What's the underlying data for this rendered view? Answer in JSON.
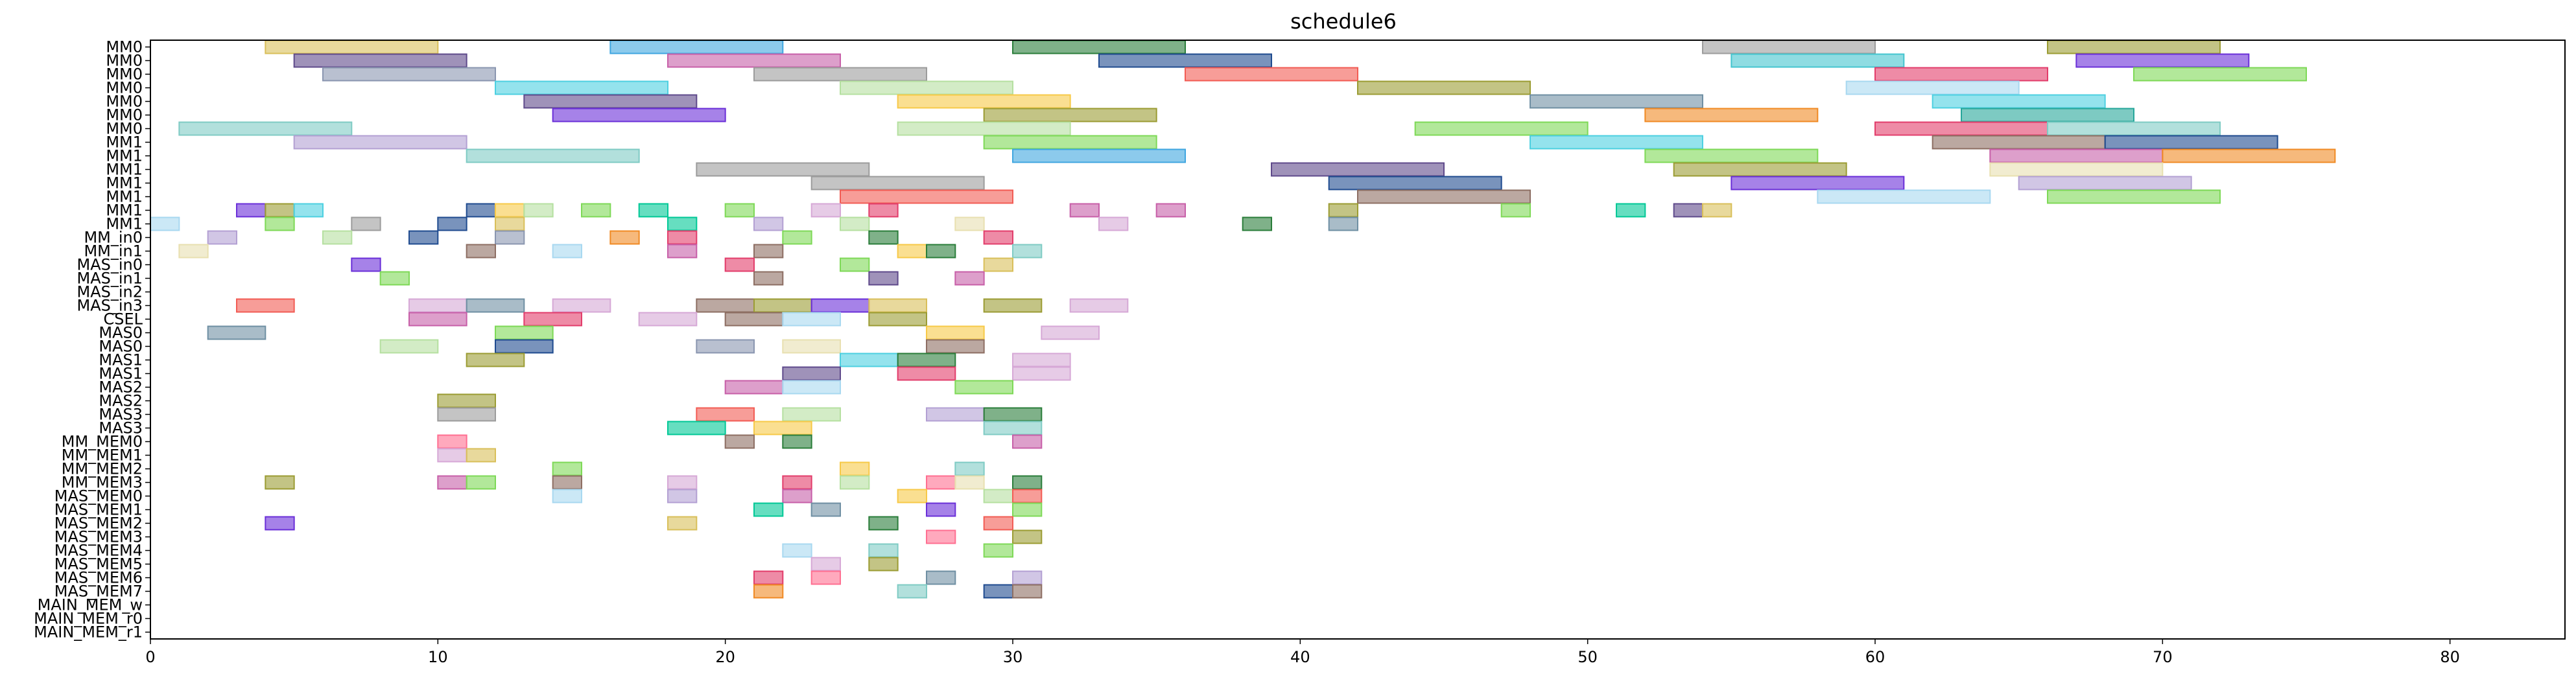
{
  "chart_data": {
    "type": "gantt",
    "title": "schedule6",
    "xlabel": "",
    "ylabel": "",
    "xlim": [
      0,
      84
    ],
    "x_ticks": [
      0,
      10,
      20,
      30,
      40,
      50,
      60,
      70,
      80
    ],
    "grid": false,
    "rows": [
      "MM0",
      "MM0",
      "MM0",
      "MM0",
      "MM0",
      "MM0",
      "MM0",
      "MM1",
      "MM1",
      "MM1",
      "MM1",
      "MM1",
      "MM1",
      "MM1",
      "MM_in0",
      "MM_in1",
      "MAS_in0",
      "MAS_in1",
      "MAS_in2",
      "MAS_in3",
      "CSEL",
      "MAS0",
      "MAS0",
      "MAS1",
      "MAS1",
      "MAS2",
      "MAS2",
      "MAS3",
      "MAS3",
      "MM_MEM0",
      "MM_MEM1",
      "MM_MEM2",
      "MM_MEM3",
      "MAS_MEM0",
      "MAS_MEM1",
      "MAS_MEM2",
      "MAS_MEM3",
      "MAS_MEM4",
      "MAS_MEM5",
      "MAS_MEM6",
      "MAS_MEM7",
      "MAIN_MEM_w",
      "MAIN_MEM_r0",
      "MAIN_MEM_r1"
    ],
    "palette": [
      "#d9bf5a",
      "#3fa6e0",
      "#2a7d3a",
      "#9c9c9c",
      "#5f4a8b",
      "#c75fa8",
      "#8a96b0",
      "#f25c54",
      "#44c5cf",
      "#d6a8d6",
      "#7ed957",
      "#f7c948",
      "#6f8fa3",
      "#6a2fd8",
      "#f08a24",
      "#9b9c33",
      "#7fcbc4",
      "#e23d6b",
      "#1f4b8f",
      "#b5e0a0",
      "#a8d8f0",
      "#b3a0d3",
      "#e8e0b0",
      "#4dd0e1",
      "#ff6f91",
      "#00c896",
      "#8d6e63",
      "#c0ca33",
      "#7e57c2",
      "#26a69a"
    ],
    "bars": [
      {
        "row": 0,
        "start": 4,
        "end": 10,
        "c": 0
      },
      {
        "row": 0,
        "start": 16,
        "end": 22,
        "c": 1
      },
      {
        "row": 0,
        "start": 30,
        "end": 36,
        "c": 2
      },
      {
        "row": 0,
        "start": 54,
        "end": 60,
        "c": 3
      },
      {
        "row": 0,
        "start": 66,
        "end": 72,
        "c": 15
      },
      {
        "row": 1,
        "start": 5,
        "end": 11,
        "c": 4
      },
      {
        "row": 1,
        "start": 18,
        "end": 24,
        "c": 5
      },
      {
        "row": 1,
        "start": 33,
        "end": 39,
        "c": 18
      },
      {
        "row": 1,
        "start": 55,
        "end": 61,
        "c": 8
      },
      {
        "row": 1,
        "start": 67,
        "end": 73,
        "c": 13
      },
      {
        "row": 2,
        "start": 6,
        "end": 12,
        "c": 6
      },
      {
        "row": 2,
        "start": 21,
        "end": 27,
        "c": 3
      },
      {
        "row": 2,
        "start": 36,
        "end": 42,
        "c": 7
      },
      {
        "row": 2,
        "start": 60,
        "end": 66,
        "c": 17
      },
      {
        "row": 2,
        "start": 69,
        "end": 75,
        "c": 10
      },
      {
        "row": 3,
        "start": 12,
        "end": 18,
        "c": 23
      },
      {
        "row": 3,
        "start": 24,
        "end": 30,
        "c": 19
      },
      {
        "row": 3,
        "start": 42,
        "end": 48,
        "c": 15
      },
      {
        "row": 3,
        "start": 59,
        "end": 65,
        "c": 20
      },
      {
        "row": 4,
        "start": 13,
        "end": 19,
        "c": 4
      },
      {
        "row": 4,
        "start": 26,
        "end": 32,
        "c": 11
      },
      {
        "row": 4,
        "start": 48,
        "end": 54,
        "c": 12
      },
      {
        "row": 4,
        "start": 62,
        "end": 68,
        "c": 23
      },
      {
        "row": 5,
        "start": 14,
        "end": 20,
        "c": 13
      },
      {
        "row": 5,
        "start": 29,
        "end": 35,
        "c": 15
      },
      {
        "row": 5,
        "start": 52,
        "end": 58,
        "c": 14
      },
      {
        "row": 5,
        "start": 63,
        "end": 69,
        "c": 29
      },
      {
        "row": 6,
        "start": 1,
        "end": 7,
        "c": 16
      },
      {
        "row": 6,
        "start": 26,
        "end": 32,
        "c": 19
      },
      {
        "row": 6,
        "start": 44,
        "end": 50,
        "c": 10
      },
      {
        "row": 6,
        "start": 60,
        "end": 66,
        "c": 17
      },
      {
        "row": 6,
        "start": 66,
        "end": 72,
        "c": 16
      },
      {
        "row": 7,
        "start": 5,
        "end": 11,
        "c": 21
      },
      {
        "row": 7,
        "start": 29,
        "end": 35,
        "c": 10
      },
      {
        "row": 7,
        "start": 48,
        "end": 54,
        "c": 23
      },
      {
        "row": 7,
        "start": 62,
        "end": 68,
        "c": 26
      },
      {
        "row": 7,
        "start": 68,
        "end": 74,
        "c": 18
      },
      {
        "row": 8,
        "start": 11,
        "end": 17,
        "c": 16
      },
      {
        "row": 8,
        "start": 30,
        "end": 36,
        "c": 1
      },
      {
        "row": 8,
        "start": 52,
        "end": 58,
        "c": 10
      },
      {
        "row": 8,
        "start": 64,
        "end": 70,
        "c": 5
      },
      {
        "row": 8,
        "start": 70,
        "end": 76,
        "c": 14
      },
      {
        "row": 9,
        "start": 19,
        "end": 25,
        "c": 3
      },
      {
        "row": 9,
        "start": 39,
        "end": 45,
        "c": 4
      },
      {
        "row": 9,
        "start": 53,
        "end": 59,
        "c": 15
      },
      {
        "row": 9,
        "start": 64,
        "end": 70,
        "c": 22
      },
      {
        "row": 10,
        "start": 23,
        "end": 29,
        "c": 3
      },
      {
        "row": 10,
        "start": 41,
        "end": 47,
        "c": 18
      },
      {
        "row": 10,
        "start": 55,
        "end": 61,
        "c": 13
      },
      {
        "row": 10,
        "start": 65,
        "end": 71,
        "c": 21
      },
      {
        "row": 11,
        "start": 24,
        "end": 30,
        "c": 7
      },
      {
        "row": 11,
        "start": 42,
        "end": 48,
        "c": 26
      },
      {
        "row": 11,
        "start": 58,
        "end": 64,
        "c": 20
      },
      {
        "row": 11,
        "start": 66,
        "end": 72,
        "c": 10
      },
      {
        "row": 12,
        "start": 3,
        "end": 4,
        "c": 13
      },
      {
        "row": 12,
        "start": 4,
        "end": 5,
        "c": 15
      },
      {
        "row": 12,
        "start": 5,
        "end": 6,
        "c": 23
      },
      {
        "row": 12,
        "start": 11,
        "end": 12,
        "c": 18
      },
      {
        "row": 12,
        "start": 12,
        "end": 13,
        "c": 11
      },
      {
        "row": 12,
        "start": 13,
        "end": 14,
        "c": 19
      },
      {
        "row": 12,
        "start": 15,
        "end": 16,
        "c": 10
      },
      {
        "row": 12,
        "start": 17,
        "end": 18,
        "c": 25
      },
      {
        "row": 12,
        "start": 20,
        "end": 21,
        "c": 10
      },
      {
        "row": 12,
        "start": 23,
        "end": 24,
        "c": 9
      },
      {
        "row": 12,
        "start": 25,
        "end": 26,
        "c": 17
      },
      {
        "row": 12,
        "start": 32,
        "end": 33,
        "c": 5
      },
      {
        "row": 12,
        "start": 35,
        "end": 36,
        "c": 5
      },
      {
        "row": 12,
        "start": 41,
        "end": 42,
        "c": 15
      },
      {
        "row": 12,
        "start": 47,
        "end": 48,
        "c": 10
      },
      {
        "row": 12,
        "start": 51,
        "end": 52,
        "c": 25
      },
      {
        "row": 12,
        "start": 53,
        "end": 54,
        "c": 4
      },
      {
        "row": 12,
        "start": 54,
        "end": 55,
        "c": 0
      },
      {
        "row": 13,
        "start": 0,
        "end": 1,
        "c": 20
      },
      {
        "row": 13,
        "start": 4,
        "end": 5,
        "c": 10
      },
      {
        "row": 13,
        "start": 7,
        "end": 8,
        "c": 3
      },
      {
        "row": 13,
        "start": 10,
        "end": 11,
        "c": 18
      },
      {
        "row": 13,
        "start": 12,
        "end": 13,
        "c": 0
      },
      {
        "row": 13,
        "start": 18,
        "end": 19,
        "c": 25
      },
      {
        "row": 13,
        "start": 21,
        "end": 22,
        "c": 21
      },
      {
        "row": 13,
        "start": 24,
        "end": 25,
        "c": 19
      },
      {
        "row": 13,
        "start": 28,
        "end": 29,
        "c": 22
      },
      {
        "row": 13,
        "start": 33,
        "end": 34,
        "c": 9
      },
      {
        "row": 13,
        "start": 38,
        "end": 39,
        "c": 2
      },
      {
        "row": 13,
        "start": 41,
        "end": 42,
        "c": 12
      },
      {
        "row": 14,
        "start": 2,
        "end": 3,
        "c": 21
      },
      {
        "row": 14,
        "start": 6,
        "end": 7,
        "c": 19
      },
      {
        "row": 14,
        "start": 9,
        "end": 10,
        "c": 18
      },
      {
        "row": 14,
        "start": 12,
        "end": 13,
        "c": 6
      },
      {
        "row": 14,
        "start": 16,
        "end": 17,
        "c": 14
      },
      {
        "row": 14,
        "start": 18,
        "end": 19,
        "c": 17
      },
      {
        "row": 14,
        "start": 22,
        "end": 23,
        "c": 10
      },
      {
        "row": 14,
        "start": 25,
        "end": 26,
        "c": 2
      },
      {
        "row": 14,
        "start": 29,
        "end": 30,
        "c": 17
      },
      {
        "row": 15,
        "start": 1,
        "end": 2,
        "c": 22
      },
      {
        "row": 15,
        "start": 11,
        "end": 12,
        "c": 26
      },
      {
        "row": 15,
        "start": 14,
        "end": 15,
        "c": 20
      },
      {
        "row": 15,
        "start": 18,
        "end": 19,
        "c": 5
      },
      {
        "row": 15,
        "start": 21,
        "end": 22,
        "c": 26
      },
      {
        "row": 15,
        "start": 26,
        "end": 27,
        "c": 11
      },
      {
        "row": 15,
        "start": 27,
        "end": 28,
        "c": 2
      },
      {
        "row": 15,
        "start": 30,
        "end": 31,
        "c": 16
      },
      {
        "row": 16,
        "start": 7,
        "end": 8,
        "c": 13
      },
      {
        "row": 16,
        "start": 20,
        "end": 21,
        "c": 17
      },
      {
        "row": 16,
        "start": 24,
        "end": 25,
        "c": 10
      },
      {
        "row": 16,
        "start": 29,
        "end": 30,
        "c": 0
      },
      {
        "row": 17,
        "start": 8,
        "end": 9,
        "c": 10
      },
      {
        "row": 17,
        "start": 21,
        "end": 22,
        "c": 26
      },
      {
        "row": 17,
        "start": 25,
        "end": 26,
        "c": 4
      },
      {
        "row": 17,
        "start": 28,
        "end": 29,
        "c": 5
      },
      {
        "row": 19,
        "start": 3,
        "end": 5,
        "c": 7
      },
      {
        "row": 19,
        "start": 9,
        "end": 11,
        "c": 9
      },
      {
        "row": 19,
        "start": 11,
        "end": 13,
        "c": 12
      },
      {
        "row": 19,
        "start": 14,
        "end": 16,
        "c": 9
      },
      {
        "row": 19,
        "start": 19,
        "end": 21,
        "c": 26
      },
      {
        "row": 19,
        "start": 21,
        "end": 23,
        "c": 15
      },
      {
        "row": 19,
        "start": 23,
        "end": 25,
        "c": 13
      },
      {
        "row": 19,
        "start": 25,
        "end": 27,
        "c": 0
      },
      {
        "row": 19,
        "start": 29,
        "end": 31,
        "c": 15
      },
      {
        "row": 19,
        "start": 32,
        "end": 34,
        "c": 9
      },
      {
        "row": 20,
        "start": 9,
        "end": 11,
        "c": 5
      },
      {
        "row": 20,
        "start": 13,
        "end": 15,
        "c": 17
      },
      {
        "row": 20,
        "start": 17,
        "end": 19,
        "c": 9
      },
      {
        "row": 20,
        "start": 20,
        "end": 22,
        "c": 26
      },
      {
        "row": 20,
        "start": 22,
        "end": 24,
        "c": 20
      },
      {
        "row": 20,
        "start": 25,
        "end": 27,
        "c": 15
      },
      {
        "row": 21,
        "start": 2,
        "end": 4,
        "c": 12
      },
      {
        "row": 21,
        "start": 12,
        "end": 14,
        "c": 10
      },
      {
        "row": 21,
        "start": 27,
        "end": 29,
        "c": 11
      },
      {
        "row": 21,
        "start": 31,
        "end": 33,
        "c": 9
      },
      {
        "row": 22,
        "start": 8,
        "end": 10,
        "c": 19
      },
      {
        "row": 22,
        "start": 12,
        "end": 14,
        "c": 18
      },
      {
        "row": 22,
        "start": 19,
        "end": 21,
        "c": 6
      },
      {
        "row": 22,
        "start": 22,
        "end": 24,
        "c": 22
      },
      {
        "row": 22,
        "start": 27,
        "end": 29,
        "c": 26
      },
      {
        "row": 23,
        "start": 11,
        "end": 13,
        "c": 15
      },
      {
        "row": 23,
        "start": 24,
        "end": 26,
        "c": 23
      },
      {
        "row": 23,
        "start": 26,
        "end": 28,
        "c": 2
      },
      {
        "row": 23,
        "start": 30,
        "end": 32,
        "c": 9
      },
      {
        "row": 24,
        "start": 22,
        "end": 24,
        "c": 4
      },
      {
        "row": 24,
        "start": 26,
        "end": 28,
        "c": 17
      },
      {
        "row": 24,
        "start": 30,
        "end": 32,
        "c": 9
      },
      {
        "row": 25,
        "start": 20,
        "end": 22,
        "c": 5
      },
      {
        "row": 25,
        "start": 22,
        "end": 24,
        "c": 20
      },
      {
        "row": 25,
        "start": 28,
        "end": 30,
        "c": 10
      },
      {
        "row": 26,
        "start": 10,
        "end": 12,
        "c": 15
      },
      {
        "row": 27,
        "start": 10,
        "end": 12,
        "c": 3
      },
      {
        "row": 27,
        "start": 19,
        "end": 21,
        "c": 7
      },
      {
        "row": 27,
        "start": 22,
        "end": 24,
        "c": 19
      },
      {
        "row": 27,
        "start": 27,
        "end": 29,
        "c": 21
      },
      {
        "row": 27,
        "start": 29,
        "end": 31,
        "c": 2
      },
      {
        "row": 28,
        "start": 18,
        "end": 20,
        "c": 25
      },
      {
        "row": 28,
        "start": 21,
        "end": 23,
        "c": 11
      },
      {
        "row": 28,
        "start": 29,
        "end": 31,
        "c": 16
      },
      {
        "row": 29,
        "start": 10,
        "end": 11,
        "c": 24
      },
      {
        "row": 29,
        "start": 20,
        "end": 21,
        "c": 26
      },
      {
        "row": 29,
        "start": 22,
        "end": 23,
        "c": 2
      },
      {
        "row": 29,
        "start": 30,
        "end": 31,
        "c": 5
      },
      {
        "row": 30,
        "start": 10,
        "end": 11,
        "c": 9
      },
      {
        "row": 30,
        "start": 11,
        "end": 12,
        "c": 0
      },
      {
        "row": 31,
        "start": 14,
        "end": 15,
        "c": 10
      },
      {
        "row": 31,
        "start": 24,
        "end": 25,
        "c": 11
      },
      {
        "row": 31,
        "start": 28,
        "end": 29,
        "c": 16
      },
      {
        "row": 32,
        "start": 4,
        "end": 5,
        "c": 15
      },
      {
        "row": 32,
        "start": 10,
        "end": 11,
        "c": 5
      },
      {
        "row": 32,
        "start": 11,
        "end": 12,
        "c": 10
      },
      {
        "row": 32,
        "start": 14,
        "end": 15,
        "c": 26
      },
      {
        "row": 32,
        "start": 18,
        "end": 19,
        "c": 9
      },
      {
        "row": 32,
        "start": 22,
        "end": 23,
        "c": 17
      },
      {
        "row": 32,
        "start": 24,
        "end": 25,
        "c": 19
      },
      {
        "row": 32,
        "start": 27,
        "end": 28,
        "c": 24
      },
      {
        "row": 32,
        "start": 28,
        "end": 29,
        "c": 22
      },
      {
        "row": 32,
        "start": 30,
        "end": 31,
        "c": 2
      },
      {
        "row": 33,
        "start": 14,
        "end": 15,
        "c": 20
      },
      {
        "row": 33,
        "start": 18,
        "end": 19,
        "c": 21
      },
      {
        "row": 33,
        "start": 22,
        "end": 23,
        "c": 5
      },
      {
        "row": 33,
        "start": 26,
        "end": 27,
        "c": 11
      },
      {
        "row": 33,
        "start": 29,
        "end": 30,
        "c": 19
      },
      {
        "row": 33,
        "start": 30,
        "end": 31,
        "c": 7
      },
      {
        "row": 34,
        "start": 21,
        "end": 22,
        "c": 25
      },
      {
        "row": 34,
        "start": 23,
        "end": 24,
        "c": 12
      },
      {
        "row": 34,
        "start": 27,
        "end": 28,
        "c": 13
      },
      {
        "row": 34,
        "start": 30,
        "end": 31,
        "c": 10
      },
      {
        "row": 35,
        "start": 4,
        "end": 5,
        "c": 13
      },
      {
        "row": 35,
        "start": 18,
        "end": 19,
        "c": 0
      },
      {
        "row": 35,
        "start": 25,
        "end": 26,
        "c": 2
      },
      {
        "row": 35,
        "start": 29,
        "end": 30,
        "c": 7
      },
      {
        "row": 36,
        "start": 27,
        "end": 28,
        "c": 24
      },
      {
        "row": 36,
        "start": 30,
        "end": 31,
        "c": 15
      },
      {
        "row": 37,
        "start": 22,
        "end": 23,
        "c": 20
      },
      {
        "row": 37,
        "start": 25,
        "end": 26,
        "c": 16
      },
      {
        "row": 37,
        "start": 29,
        "end": 30,
        "c": 10
      },
      {
        "row": 38,
        "start": 23,
        "end": 24,
        "c": 9
      },
      {
        "row": 38,
        "start": 25,
        "end": 26,
        "c": 15
      },
      {
        "row": 39,
        "start": 21,
        "end": 22,
        "c": 17
      },
      {
        "row": 39,
        "start": 23,
        "end": 24,
        "c": 24
      },
      {
        "row": 39,
        "start": 27,
        "end": 28,
        "c": 12
      },
      {
        "row": 39,
        "start": 30,
        "end": 31,
        "c": 21
      },
      {
        "row": 40,
        "start": 21,
        "end": 22,
        "c": 14
      },
      {
        "row": 40,
        "start": 26,
        "end": 27,
        "c": 16
      },
      {
        "row": 40,
        "start": 29,
        "end": 30,
        "c": 18
      },
      {
        "row": 40,
        "start": 30,
        "end": 31,
        "c": 26
      }
    ]
  }
}
